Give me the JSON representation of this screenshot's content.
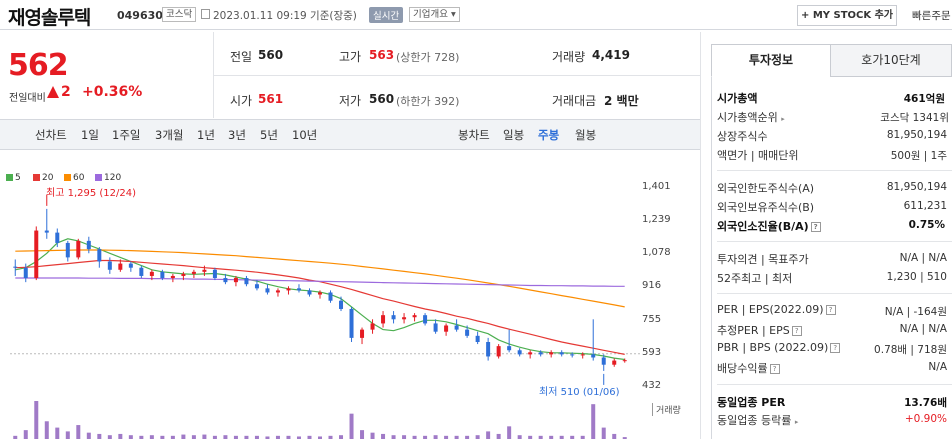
{
  "header": {
    "name": "재영솔루텍",
    "code": "049630",
    "market_tag": "코스닥",
    "date_text": "2023.01.11 09:19 기준(장중)",
    "realtime_label": "실시간",
    "company_overview_label": "기업개요 ▾",
    "my_stock_label": "+ MY STOCK 추가",
    "quick_order_label": "빠른주문"
  },
  "price": {
    "current": "562",
    "change_label": "전일대비",
    "change_value": "2",
    "change_pct": "+0.36%"
  },
  "quote": {
    "prev_label": "전일",
    "prev_value": "560",
    "high_label": "고가",
    "high_value": "563",
    "upper_limit": "(상한가 728)",
    "volume_label": "거래량",
    "volume_value": "4,419",
    "open_label": "시가",
    "open_value": "561",
    "low_label": "저가",
    "low_value": "560",
    "lower_limit": "(하한가 392)",
    "amount_label": "거래대금",
    "amount_value": "2 백만"
  },
  "periods": {
    "line_label": "선차트",
    "items": [
      "1일",
      "1주일",
      "3개월",
      "1년",
      "3년",
      "5년",
      "10년"
    ],
    "candle_label": "봉차트",
    "candles": [
      "일봉",
      "주봉",
      "월봉"
    ],
    "selected_candle": "주봉"
  },
  "tabs": {
    "invest": "투자정보",
    "orderbook": "호가10단계"
  },
  "info": {
    "market_cap_label": "시가총액",
    "market_cap_value": "461억원",
    "rank_label": "시가총액순위",
    "rank_value": "코스닥 1341위",
    "shares_label": "상장주식수",
    "shares_value": "81,950,194",
    "par_label": "액면가 | 매매단위",
    "par_value": "500원 | 1주",
    "foreign_limit_label": "외국인한도주식수(A)",
    "foreign_limit_value": "81,950,194",
    "foreign_hold_label": "외국인보유주식수(B)",
    "foreign_hold_value": "611,231",
    "foreign_ratio_label": "외국인소진율(B/A)",
    "foreign_ratio_value": "0.75%",
    "opinion_label": "투자의견 | 목표주가",
    "opinion_value": "N/A | N/A",
    "wk52_label": "52주최고 | 최저",
    "wk52_value": "1,230 | 510",
    "per_label": "PER | EPS(2022.09)",
    "per_value": "N/A | -164원",
    "est_per_label": "추정PER | EPS",
    "est_per_value": "N/A | N/A",
    "pbr_label": "PBR | BPS (2022.09)",
    "pbr_value": "0.78배 | 718원",
    "div_label": "배당수익률",
    "div_value": "N/A",
    "sector_per_label": "동일업종 PER",
    "sector_per_value": "13.76배",
    "sector_chg_label": "동일업종 등락률",
    "sector_chg_value": "+0.90%"
  },
  "chart_data": {
    "type": "line",
    "legend": [
      {
        "name": "5",
        "color": "#4caf50"
      },
      {
        "name": "20",
        "color": "#e53935"
      },
      {
        "name": "60",
        "color": "#fb8c00"
      },
      {
        "name": "120",
        "color": "#9c6ade"
      }
    ],
    "y_ticks": [
      "1,401",
      "1,239",
      "1,078",
      "916",
      "755",
      "593",
      "432"
    ],
    "ylim": [
      432,
      1401
    ],
    "high_annotation": "최고 1,295 (12/24)",
    "low_annotation": "최저 510 (01/06)",
    "volume_label": "거래량",
    "candles": [
      [
        1015,
        1050,
        970,
        1010
      ],
      [
        1010,
        1030,
        940,
        960
      ],
      [
        960,
        1210,
        950,
        1190
      ],
      [
        1190,
        1295,
        1150,
        1180
      ],
      [
        1180,
        1200,
        1110,
        1130
      ],
      [
        1130,
        1140,
        1040,
        1060
      ],
      [
        1060,
        1150,
        1050,
        1140
      ],
      [
        1140,
        1160,
        1080,
        1100
      ],
      [
        1100,
        1110,
        1010,
        1040
      ],
      [
        1040,
        1060,
        980,
        1000
      ],
      [
        1000,
        1050,
        990,
        1030
      ],
      [
        1030,
        1040,
        990,
        1010
      ],
      [
        1010,
        1020,
        960,
        970
      ],
      [
        970,
        1000,
        950,
        990
      ],
      [
        990,
        1000,
        950,
        960
      ],
      [
        960,
        980,
        940,
        970
      ],
      [
        970,
        990,
        950,
        980
      ],
      [
        980,
        1000,
        960,
        990
      ],
      [
        990,
        1020,
        970,
        1000
      ],
      [
        1000,
        1010,
        950,
        960
      ],
      [
        960,
        980,
        930,
        940
      ],
      [
        940,
        970,
        920,
        960
      ],
      [
        960,
        970,
        920,
        930
      ],
      [
        930,
        950,
        900,
        910
      ],
      [
        910,
        930,
        880,
        890
      ],
      [
        890,
        910,
        870,
        900
      ],
      [
        900,
        920,
        880,
        910
      ],
      [
        910,
        930,
        890,
        900
      ],
      [
        900,
        910,
        870,
        880
      ],
      [
        880,
        900,
        860,
        890
      ],
      [
        890,
        900,
        840,
        850
      ],
      [
        850,
        870,
        800,
        810
      ],
      [
        810,
        820,
        650,
        670
      ],
      [
        670,
        720,
        640,
        710
      ],
      [
        710,
        760,
        690,
        740
      ],
      [
        740,
        800,
        720,
        780
      ],
      [
        780,
        800,
        740,
        760
      ],
      [
        760,
        790,
        740,
        770
      ],
      [
        770,
        790,
        750,
        780
      ],
      [
        780,
        790,
        730,
        740
      ],
      [
        740,
        760,
        690,
        700
      ],
      [
        700,
        740,
        680,
        730
      ],
      [
        730,
        760,
        700,
        710
      ],
      [
        710,
        730,
        670,
        680
      ],
      [
        680,
        700,
        640,
        650
      ],
      [
        650,
        670,
        560,
        580
      ],
      [
        580,
        640,
        570,
        630
      ],
      [
        630,
        710,
        600,
        610
      ],
      [
        610,
        620,
        580,
        590
      ],
      [
        590,
        610,
        570,
        600
      ],
      [
        600,
        610,
        580,
        590
      ],
      [
        590,
        610,
        575,
        600
      ],
      [
        600,
        610,
        580,
        590
      ],
      [
        590,
        600,
        575,
        585
      ],
      [
        585,
        600,
        570,
        590
      ],
      [
        590,
        760,
        560,
        575
      ],
      [
        575,
        590,
        510,
        540
      ],
      [
        540,
        570,
        530,
        560
      ],
      [
        560,
        570,
        550,
        562
      ]
    ],
    "volumes": [
      5,
      14,
      60,
      28,
      18,
      12,
      22,
      10,
      8,
      6,
      8,
      6,
      5,
      6,
      5,
      5,
      7,
      6,
      7,
      5,
      6,
      5,
      5,
      5,
      4,
      5,
      5,
      4,
      5,
      4,
      5,
      6,
      40,
      14,
      10,
      8,
      6,
      6,
      5,
      5,
      6,
      5,
      5,
      5,
      6,
      12,
      8,
      20,
      6,
      5,
      5,
      5,
      5,
      5,
      5,
      55,
      18,
      8,
      3
    ],
    "ma": {
      "5": [
        1000,
        1010,
        1040,
        1080,
        1130,
        1150,
        1140,
        1120,
        1100,
        1080,
        1060,
        1040,
        1020,
        1000,
        990,
        985,
        980,
        978,
        980,
        982,
        975,
        965,
        955,
        945,
        930,
        918,
        908,
        902,
        898,
        892,
        880,
        860,
        820,
        780,
        740,
        710,
        705,
        720,
        740,
        755,
        755,
        748,
        735,
        720,
        705,
        690,
        660,
        640,
        625,
        612,
        603,
        598,
        597,
        596,
        594,
        590,
        582,
        572,
        565
      ],
      "20": [
        1010,
        1012,
        1015,
        1020,
        1025,
        1030,
        1035,
        1040,
        1045,
        1045,
        1043,
        1040,
        1036,
        1032,
        1028,
        1024,
        1020,
        1015,
        1010,
        1006,
        1002,
        998,
        993,
        988,
        982,
        975,
        968,
        960,
        950,
        942,
        930,
        918,
        905,
        890,
        875,
        860,
        848,
        835,
        822,
        810,
        800,
        788,
        775,
        765,
        752,
        740,
        725,
        712,
        700,
        688,
        675,
        662,
        650,
        640,
        630,
        620,
        610,
        600,
        590
      ],
      "60": [
        1090,
        1091,
        1092,
        1093,
        1094,
        1095,
        1096,
        1096,
        1096,
        1095,
        1094,
        1093,
        1091,
        1089,
        1087,
        1085,
        1083,
        1080,
        1077,
        1074,
        1071,
        1068,
        1064,
        1060,
        1056,
        1052,
        1048,
        1044,
        1040,
        1036,
        1032,
        1027,
        1022,
        1016,
        1010,
        1004,
        998,
        992,
        986,
        980,
        973,
        966,
        959,
        952,
        944,
        936,
        928,
        920,
        911,
        902,
        893,
        884,
        875,
        866,
        857,
        848,
        839,
        830,
        820
      ],
      "120": [
        960,
        960,
        960,
        960,
        960,
        960,
        960,
        959,
        959,
        959,
        958,
        958,
        958,
        957,
        957,
        956,
        956,
        955,
        955,
        954,
        953,
        952,
        951,
        950,
        949,
        948,
        947,
        946,
        945,
        944,
        943,
        942,
        941,
        940,
        939,
        938,
        937,
        936,
        935,
        934,
        933,
        932,
        931,
        930,
        929,
        928,
        927,
        926,
        925,
        924,
        924,
        923,
        923,
        922,
        922,
        921,
        921,
        920,
        920
      ]
    }
  }
}
